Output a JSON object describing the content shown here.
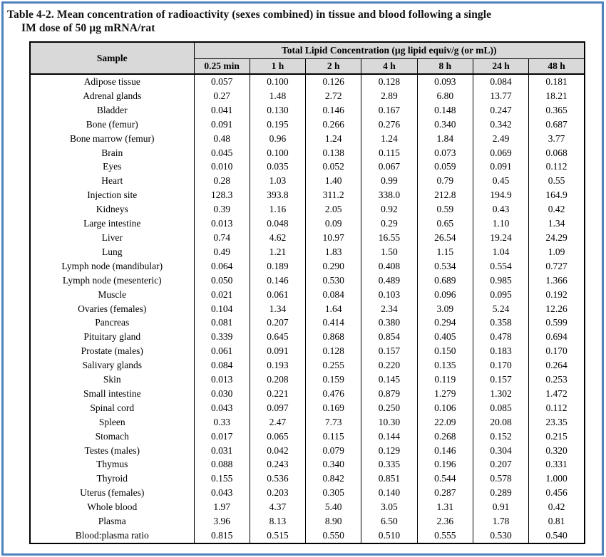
{
  "page": {
    "frame_color": "#4f81bd",
    "header_bg": "#d9d9d9",
    "border_color": "#000000"
  },
  "title": {
    "line1": "Table 4-2. Mean concentration of radioactivity (sexes combined) in tissue and blood following a single",
    "line2": "IM dose of 50 µg mRNA/rat"
  },
  "table": {
    "sample_header": "Sample",
    "group_header": "Total Lipid Concentration (µg lipid equiv/g (or mL))",
    "time_headers": [
      "0.25 min",
      "1 h",
      "2 h",
      "4 h",
      "8 h",
      "24 h",
      "48 h"
    ],
    "rows": [
      {
        "sample": "Adipose tissue",
        "values": [
          "0.057",
          "0.100",
          "0.126",
          "0.128",
          "0.093",
          "0.084",
          "0.181"
        ]
      },
      {
        "sample": "Adrenal glands",
        "values": [
          "0.27",
          "1.48",
          "2.72",
          "2.89",
          "6.80",
          "13.77",
          "18.21"
        ]
      },
      {
        "sample": "Bladder",
        "values": [
          "0.041",
          "0.130",
          "0.146",
          "0.167",
          "0.148",
          "0.247",
          "0.365"
        ]
      },
      {
        "sample": "Bone (femur)",
        "values": [
          "0.091",
          "0.195",
          "0.266",
          "0.276",
          "0.340",
          "0.342",
          "0.687"
        ]
      },
      {
        "sample": "Bone marrow (femur)",
        "values": [
          "0.48",
          "0.96",
          "1.24",
          "1.24",
          "1.84",
          "2.49",
          "3.77"
        ]
      },
      {
        "sample": "Brain",
        "values": [
          "0.045",
          "0.100",
          "0.138",
          "0.115",
          "0.073",
          "0.069",
          "0.068"
        ]
      },
      {
        "sample": "Eyes",
        "values": [
          "0.010",
          "0.035",
          "0.052",
          "0.067",
          "0.059",
          "0.091",
          "0.112"
        ]
      },
      {
        "sample": "Heart",
        "values": [
          "0.28",
          "1.03",
          "1.40",
          "0.99",
          "0.79",
          "0.45",
          "0.55"
        ]
      },
      {
        "sample": "Injection site",
        "values": [
          "128.3",
          "393.8",
          "311.2",
          "338.0",
          "212.8",
          "194.9",
          "164.9"
        ]
      },
      {
        "sample": "Kidneys",
        "values": [
          "0.39",
          "1.16",
          "2.05",
          "0.92",
          "0.59",
          "0.43",
          "0.42"
        ]
      },
      {
        "sample": "Large intestine",
        "values": [
          "0.013",
          "0.048",
          "0.09",
          "0.29",
          "0.65",
          "1.10",
          "1.34"
        ]
      },
      {
        "sample": "Liver",
        "values": [
          "0.74",
          "4.62",
          "10.97",
          "16.55",
          "26.54",
          "19.24",
          "24.29"
        ]
      },
      {
        "sample": "Lung",
        "values": [
          "0.49",
          "1.21",
          "1.83",
          "1.50",
          "1.15",
          "1.04",
          "1.09"
        ]
      },
      {
        "sample": "Lymph node (mandibular)",
        "values": [
          "0.064",
          "0.189",
          "0.290",
          "0.408",
          "0.534",
          "0.554",
          "0.727"
        ]
      },
      {
        "sample": "Lymph node (mesenteric)",
        "values": [
          "0.050",
          "0.146",
          "0.530",
          "0.489",
          "0.689",
          "0.985",
          "1.366"
        ]
      },
      {
        "sample": "Muscle",
        "values": [
          "0.021",
          "0.061",
          "0.084",
          "0.103",
          "0.096",
          "0.095",
          "0.192"
        ]
      },
      {
        "sample": "Ovaries (females)",
        "values": [
          "0.104",
          "1.34",
          "1.64",
          "2.34",
          "3.09",
          "5.24",
          "12.26"
        ]
      },
      {
        "sample": "Pancreas",
        "values": [
          "0.081",
          "0.207",
          "0.414",
          "0.380",
          "0.294",
          "0.358",
          "0.599"
        ]
      },
      {
        "sample": "Pituitary gland",
        "values": [
          "0.339",
          "0.645",
          "0.868",
          "0.854",
          "0.405",
          "0.478",
          "0.694"
        ]
      },
      {
        "sample": "Prostate (males)",
        "values": [
          "0.061",
          "0.091",
          "0.128",
          "0.157",
          "0.150",
          "0.183",
          "0.170"
        ]
      },
      {
        "sample": "Salivary glands",
        "values": [
          "0.084",
          "0.193",
          "0.255",
          "0.220",
          "0.135",
          "0.170",
          "0.264"
        ]
      },
      {
        "sample": "Skin",
        "values": [
          "0.013",
          "0.208",
          "0.159",
          "0.145",
          "0.119",
          "0.157",
          "0.253"
        ]
      },
      {
        "sample": "Small intestine",
        "values": [
          "0.030",
          "0.221",
          "0.476",
          "0.879",
          "1.279",
          "1.302",
          "1.472"
        ]
      },
      {
        "sample": "Spinal cord",
        "values": [
          "0.043",
          "0.097",
          "0.169",
          "0.250",
          "0.106",
          "0.085",
          "0.112"
        ]
      },
      {
        "sample": "Spleen",
        "values": [
          "0.33",
          "2.47",
          "7.73",
          "10.30",
          "22.09",
          "20.08",
          "23.35"
        ]
      },
      {
        "sample": "Stomach",
        "values": [
          "0.017",
          "0.065",
          "0.115",
          "0.144",
          "0.268",
          "0.152",
          "0.215"
        ]
      },
      {
        "sample": "Testes (males)",
        "values": [
          "0.031",
          "0.042",
          "0.079",
          "0.129",
          "0.146",
          "0.304",
          "0.320"
        ]
      },
      {
        "sample": "Thymus",
        "values": [
          "0.088",
          "0.243",
          "0.340",
          "0.335",
          "0.196",
          "0.207",
          "0.331"
        ]
      },
      {
        "sample": "Thyroid",
        "values": [
          "0.155",
          "0.536",
          "0.842",
          "0.851",
          "0.544",
          "0.578",
          "1.000"
        ]
      },
      {
        "sample": "Uterus (females)",
        "values": [
          "0.043",
          "0.203",
          "0.305",
          "0.140",
          "0.287",
          "0.289",
          "0.456"
        ]
      },
      {
        "sample": "Whole blood",
        "values": [
          "1.97",
          "4.37",
          "5.40",
          "3.05",
          "1.31",
          "0.91",
          "0.42"
        ]
      },
      {
        "sample": "Plasma",
        "values": [
          "3.96",
          "8.13",
          "8.90",
          "6.50",
          "2.36",
          "1.78",
          "0.81"
        ]
      },
      {
        "sample": "Blood:plasma ratio",
        "values": [
          "0.815",
          "0.515",
          "0.550",
          "0.510",
          "0.555",
          "0.530",
          "0.540"
        ]
      }
    ]
  }
}
